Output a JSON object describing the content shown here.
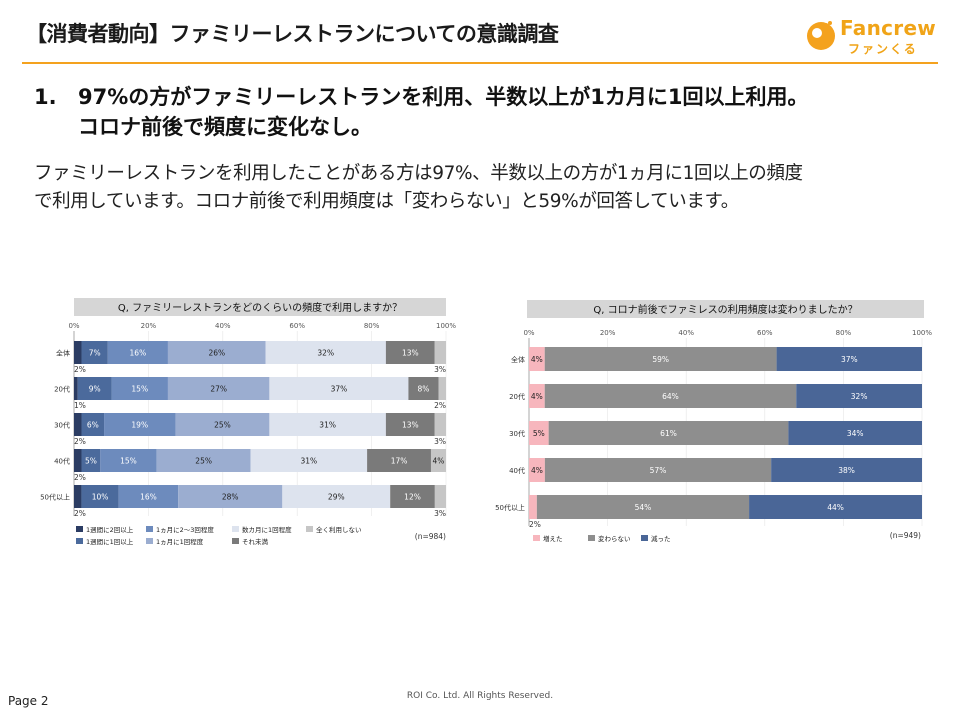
{
  "header": {
    "title": "【消費者動向】ファミリーレストランについての意識調査",
    "brand": "Fancrew",
    "brand_kana": "ファンくる"
  },
  "headline": {
    "number": "1.",
    "line1": "97%の方がファミリーレストランを利用、半数以上が1カ月に1回以上利用。",
    "line2": "コロナ前後で頻度に変化なし。"
  },
  "body_text": {
    "line1": "ファミリーレストランを利用したことがある方は97%、半数以上の方が1ヵ月に1回以上の頻度",
    "line2": "で利用しています。コロナ前後で利用頻度は「変わらない」と59%が回答しています。"
  },
  "footer": {
    "page": "Page 2",
    "copyright": "ROI Co. Ltd. All Rights Reserved."
  },
  "colors": {
    "brand_orange": "#f4a21e",
    "s1": "#2b3c63",
    "s2": "#4b6a9c",
    "s3": "#9badd0",
    "s4": "#dde3ee",
    "s5": "#7a7a7a",
    "s6": "#c6c6c6",
    "increase": "#f7b6bd",
    "same": "#8e8e8e",
    "decrease": "#4a6697"
  },
  "chart_data": [
    {
      "type": "bar",
      "orientation": "horizontal-stacked-100",
      "title": "Q, ファミリーレストランをどのくらいの頻度で利用しますか？",
      "categories": [
        "全体",
        "20代",
        "30代",
        "40代",
        "50代以上"
      ],
      "xlim": [
        0,
        100
      ],
      "xticks": [
        "0%",
        "20%",
        "40%",
        "60%",
        "80%",
        "100%"
      ],
      "series": [
        {
          "name": "1週間に2回以上",
          "color": "#2b3c63",
          "values": [
            2,
            1,
            2,
            2,
            2
          ],
          "labels": [
            "2%",
            "1%",
            "2%",
            "2%",
            "2%"
          ]
        },
        {
          "name": "1週間に1回以上",
          "color": "#4b6a9c",
          "values": [
            7,
            9,
            6,
            5,
            10
          ],
          "labels": [
            "7%",
            "9%",
            "6%",
            "5%",
            "10%"
          ]
        },
        {
          "name": "1ヵ月に2～3回程度",
          "color": "#6d8bbd",
          "values": [
            16,
            15,
            19,
            15,
            16
          ],
          "labels": [
            "16%",
            "15%",
            "19%",
            "15%",
            "16%"
          ]
        },
        {
          "name": "1ヵ月に1回程度",
          "color": "#9badd0",
          "values": [
            26,
            27,
            25,
            25,
            28
          ],
          "labels": [
            "26%",
            "27%",
            "25%",
            "25%",
            "28%"
          ]
        },
        {
          "name": "数カ月に1回程度",
          "color": "#dde3ee",
          "values": [
            32,
            37,
            31,
            31,
            29
          ],
          "labels": [
            "32%",
            "37%",
            "31%",
            "31%",
            "29%"
          ]
        },
        {
          "name": "それ未満",
          "color": "#7a7a7a",
          "values": [
            13,
            8,
            13,
            17,
            12
          ],
          "labels": [
            "13%",
            "8%",
            "13%",
            "17%",
            "12%"
          ]
        },
        {
          "name": "全く利用しない",
          "color": "#c6c6c6",
          "values": [
            3,
            2,
            3,
            4,
            3
          ],
          "labels": [
            "3%",
            "2%",
            "3%",
            "4%",
            "3%"
          ]
        }
      ],
      "note": "(n=984)"
    },
    {
      "type": "bar",
      "orientation": "horizontal-stacked-100",
      "title": "Q, コロナ前後でファミレスの利用頻度は変わりましたか？",
      "categories": [
        "全体",
        "20代",
        "30代",
        "40代",
        "50代以上"
      ],
      "xlim": [
        0,
        100
      ],
      "xticks": [
        "0%",
        "20%",
        "40%",
        "60%",
        "80%",
        "100%"
      ],
      "series": [
        {
          "name": "増えた",
          "color": "#f7b6bd",
          "values": [
            4,
            4,
            5,
            4,
            2
          ],
          "labels": [
            "4%",
            "4%",
            "5%",
            "4%",
            "2%"
          ]
        },
        {
          "name": "変わらない",
          "color": "#8e8e8e",
          "values": [
            59,
            64,
            61,
            57,
            54
          ],
          "labels": [
            "59%",
            "64%",
            "61%",
            "57%",
            "54%"
          ]
        },
        {
          "name": "減った",
          "color": "#4a6697",
          "values": [
            37,
            32,
            34,
            38,
            44
          ],
          "labels": [
            "37%",
            "32%",
            "34%",
            "38%",
            "44%"
          ]
        }
      ],
      "note": "(n=949)"
    }
  ]
}
